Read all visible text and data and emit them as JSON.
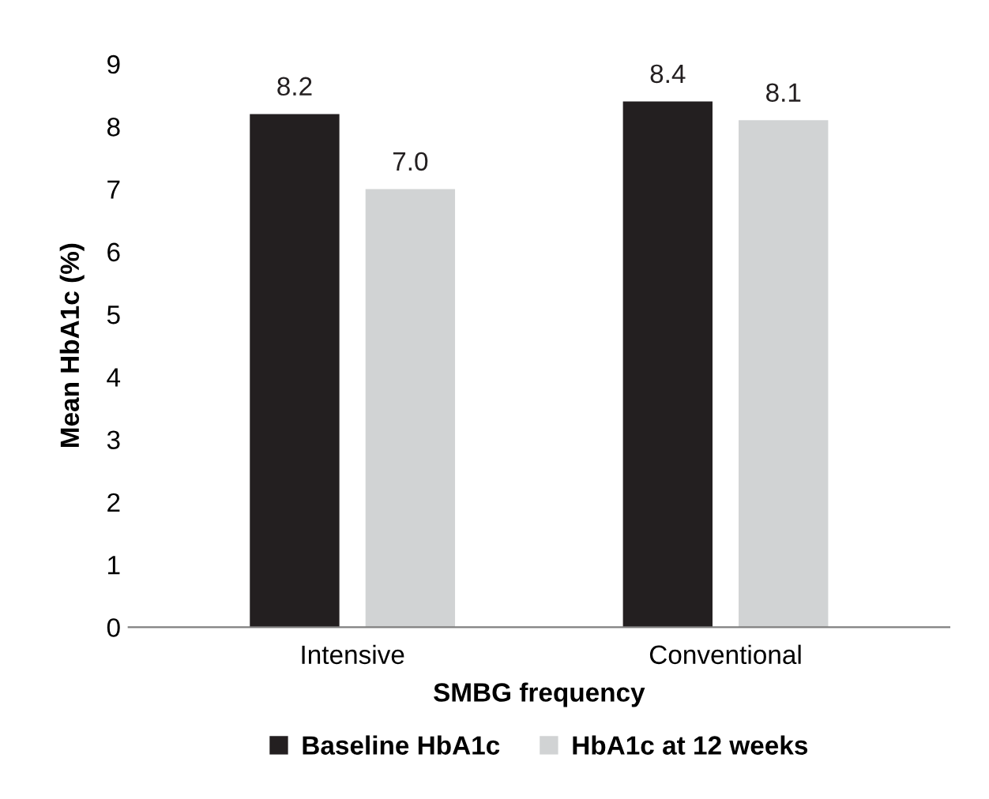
{
  "chart_data": {
    "type": "bar",
    "xlabel": "SMBG frequency",
    "ylabel": "Mean HbA1c (%)",
    "categories": [
      "Intensive",
      "Conventional"
    ],
    "series": [
      {
        "name": "Baseline HbA1c",
        "color": "#231f20",
        "values": [
          8.2,
          8.4
        ],
        "value_labels": [
          "8.2",
          "8.4"
        ]
      },
      {
        "name": "HbA1c at 12 weeks",
        "color": "#d1d3d4",
        "values": [
          7.0,
          8.1
        ],
        "value_labels": [
          "7.0",
          "8.1"
        ]
      }
    ],
    "ylim": [
      0,
      9
    ],
    "yticks": [
      0,
      1,
      2,
      3,
      4,
      5,
      6,
      7,
      8,
      9
    ],
    "grid": false,
    "legend": "bottom"
  }
}
